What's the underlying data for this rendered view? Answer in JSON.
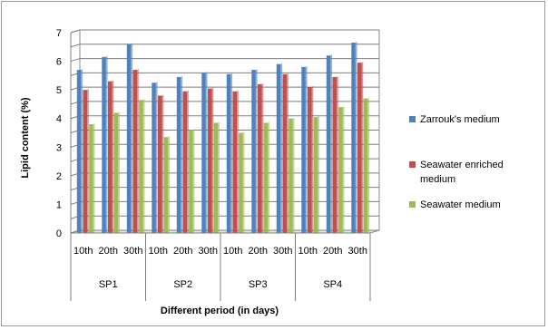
{
  "chart_data": {
    "type": "bar",
    "ylabel": "Lipid content (%)",
    "xlabel": "Different period (in days)",
    "ylim": [
      0,
      7
    ],
    "yticks": [
      "0",
      "1",
      "2",
      "3",
      "4",
      "5",
      "6",
      "7"
    ],
    "grid": true,
    "legend_position": "right",
    "groups": [
      {
        "label": "SP1",
        "categories": [
          "10th",
          "20th",
          "30th"
        ]
      },
      {
        "label": "SP2",
        "categories": [
          "10th",
          "20th",
          "30th"
        ]
      },
      {
        "label": "SP3",
        "categories": [
          "10th",
          "20th",
          "30th"
        ]
      },
      {
        "label": "SP4",
        "categories": [
          "10th",
          "20th",
          "30th"
        ]
      }
    ],
    "series": [
      {
        "name": "Zarrouk's medium",
        "color": "#4f81bd",
        "values": [
          5.7,
          6.15,
          6.6,
          5.25,
          5.45,
          5.6,
          5.55,
          5.7,
          5.9,
          5.8,
          6.2,
          6.65
        ]
      },
      {
        "name": "Seawater enriched medium",
        "color": "#c0504d",
        "values": [
          5.0,
          5.3,
          5.7,
          4.8,
          4.95,
          5.05,
          4.95,
          5.2,
          5.55,
          5.1,
          5.45,
          5.95
        ]
      },
      {
        "name": "Seawater medium",
        "color": "#9bbb59",
        "values": [
          3.8,
          4.2,
          4.65,
          3.35,
          3.6,
          3.85,
          3.5,
          3.85,
          4.0,
          4.05,
          4.4,
          4.7
        ]
      }
    ],
    "legend": [
      {
        "lines": [
          "Zarrouk's medium"
        ]
      },
      {
        "lines": [
          "Seawater enriched",
          "medium"
        ]
      },
      {
        "lines": [
          "Seawater medium"
        ]
      }
    ]
  }
}
